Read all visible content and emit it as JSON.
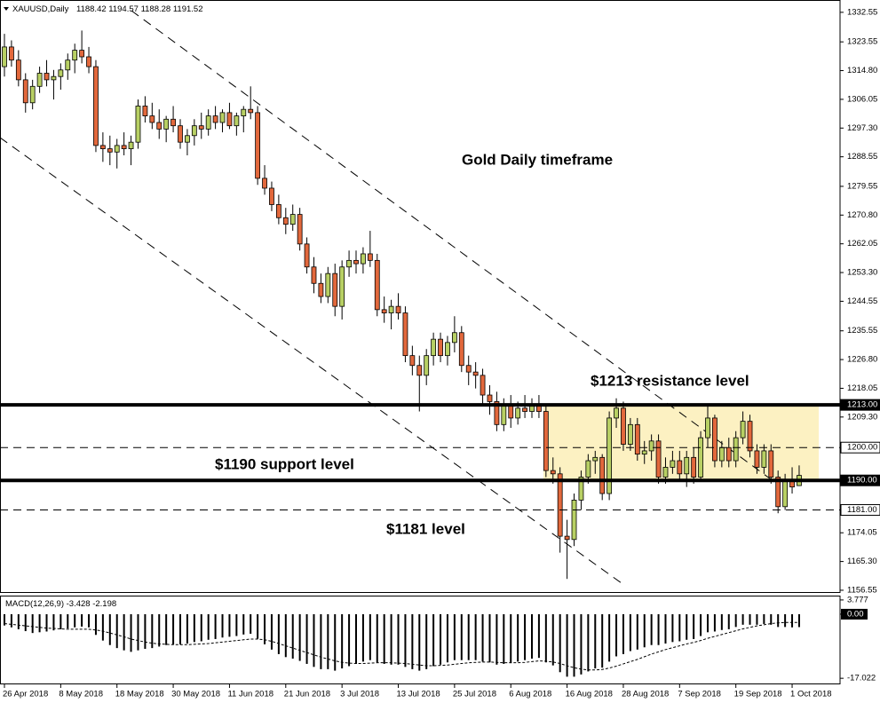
{
  "chart_data": [
    {
      "type": "candlestick",
      "title": "XAUUSD,Daily",
      "annotations": [
        "Gold Daily timeframe",
        "$1213 resistance level",
        "$1190 support level",
        "$1181 level"
      ],
      "categories": [
        "26 Apr 2018",
        null,
        null,
        null,
        null,
        null,
        null,
        null,
        "8 May 2018",
        null,
        null,
        null,
        null,
        null,
        null,
        null,
        "18 May 2018",
        null,
        null,
        null,
        null,
        null,
        null,
        null,
        "30 May 2018",
        null,
        null,
        null,
        null,
        null,
        null,
        null,
        "11 Jun 2018",
        null,
        null,
        null,
        null,
        null,
        null,
        null,
        "21 Jun 2018",
        null,
        null,
        null,
        null,
        null,
        null,
        null,
        "3 Jul 2018",
        null,
        null,
        null,
        null,
        null,
        null,
        null,
        "13 Jul 2018",
        null,
        null,
        null,
        null,
        null,
        null,
        null,
        "25 Jul 2018",
        null,
        null,
        null,
        null,
        null,
        null,
        null,
        "6 Aug 2018",
        null,
        null,
        null,
        null,
        null,
        null,
        null,
        "16 Aug 2018",
        null,
        null,
        null,
        null,
        null,
        null,
        null,
        "28 Aug 2018",
        null,
        null,
        null,
        null,
        null,
        null,
        null,
        "7 Sep 2018",
        null,
        null,
        null,
        null,
        null,
        null,
        null,
        "19 Sep 2018",
        null,
        null,
        null,
        null,
        null,
        null,
        null,
        "1 Oct 2018",
        null
      ],
      "open": [
        1316,
        1322,
        1318,
        1312,
        1305,
        1310,
        1314,
        1312,
        1313,
        1315,
        1318,
        1321,
        1319,
        1316,
        1292,
        1291,
        1290,
        1292,
        1291,
        1293,
        1304,
        1301,
        1299,
        1297,
        1300,
        1298,
        1293,
        1295,
        1298,
        1297,
        1301,
        1299,
        1302,
        1298,
        1301,
        1303,
        1302,
        1282,
        1279,
        1274,
        1270,
        1268,
        1271,
        1262,
        1255,
        1250,
        1246,
        1253,
        1243,
        1255,
        1257,
        1256,
        1259,
        1257,
        1242,
        1241,
        1243,
        1241,
        1228,
        1225,
        1222,
        1228,
        1233,
        1228,
        1232,
        1235,
        1225,
        1223,
        1222,
        1216,
        1214,
        1207,
        1213,
        1209,
        1212,
        1211,
        1213,
        1211,
        1193,
        1192,
        1173,
        1172,
        1184,
        1191,
        1196,
        1197,
        1186,
        1209,
        1212,
        1201,
        1207,
        1198,
        1199,
        1202,
        1191,
        1194,
        1196,
        1192,
        1197,
        1191,
        1203,
        1209,
        1196,
        1200,
        1196,
        1203,
        1208,
        1199,
        1194,
        1199,
        1191,
        1182,
        1190,
        1188.42
      ],
      "high": [
        1326,
        1324,
        1321,
        1314,
        1312,
        1316,
        1318,
        1315,
        1317,
        1320,
        1323,
        1327,
        1322,
        1318,
        1296,
        1295,
        1294,
        1296,
        1295,
        1306,
        1307,
        1305,
        1303,
        1301,
        1304,
        1300,
        1297,
        1300,
        1302,
        1303,
        1304,
        1303,
        1305,
        1302,
        1304,
        1310,
        1304,
        1286,
        1281,
        1277,
        1273,
        1274,
        1273,
        1264,
        1258,
        1253,
        1255,
        1256,
        1257,
        1260,
        1260,
        1261,
        1266,
        1259,
        1246,
        1245,
        1247,
        1243,
        1231,
        1228,
        1230,
        1235,
        1235,
        1234,
        1240,
        1237,
        1228,
        1226,
        1224,
        1219,
        1217,
        1215,
        1216,
        1214,
        1216,
        1215,
        1216,
        1213,
        1197,
        1194,
        1178,
        1186,
        1193,
        1198,
        1199,
        1198,
        1211,
        1215,
        1214,
        1209,
        1209,
        1202,
        1204,
        1204,
        1197,
        1199,
        1199,
        1199,
        1200,
        1205,
        1213,
        1210,
        1202,
        1203,
        1205,
        1211,
        1210,
        1201,
        1201,
        1201,
        1193,
        1192,
        1194,
        1194.57
      ],
      "low": [
        1313,
        1316,
        1310,
        1302,
        1303,
        1308,
        1310,
        1306,
        1309,
        1312,
        1314,
        1317,
        1314,
        1290,
        1287,
        1286,
        1285,
        1289,
        1286,
        1291,
        1299,
        1297,
        1294,
        1293,
        1296,
        1291,
        1289,
        1292,
        1294,
        1295,
        1297,
        1296,
        1297,
        1295,
        1296,
        1300,
        1280,
        1277,
        1272,
        1268,
        1265,
        1266,
        1260,
        1253,
        1247,
        1244,
        1244,
        1240,
        1239,
        1252,
        1253,
        1253,
        1255,
        1240,
        1238,
        1236,
        1239,
        1226,
        1222,
        1211,
        1219,
        1225,
        1226,
        1225,
        1229,
        1223,
        1219,
        1218,
        1213,
        1210,
        1205,
        1205,
        1206,
        1207,
        1209,
        1209,
        1209,
        1191,
        1189,
        1168,
        1160,
        1170,
        1181,
        1189,
        1192,
        1184,
        1184,
        1206,
        1199,
        1199,
        1196,
        1195,
        1196,
        1189,
        1189,
        1192,
        1190,
        1188,
        1189,
        1190,
        1200,
        1194,
        1194,
        1194,
        1194,
        1201,
        1197,
        1192,
        1192,
        1189,
        1180,
        1181,
        1186,
        1188.28
      ],
      "close": [
        1322,
        1318,
        1312,
        1305,
        1310,
        1314,
        1312,
        1313,
        1315,
        1318,
        1321,
        1319,
        1316,
        1292,
        1291,
        1290,
        1292,
        1291,
        1293,
        1304,
        1301,
        1299,
        1297,
        1300,
        1298,
        1293,
        1295,
        1298,
        1297,
        1301,
        1299,
        1302,
        1298,
        1301,
        1303,
        1302,
        1282,
        1279,
        1274,
        1270,
        1268,
        1271,
        1262,
        1255,
        1250,
        1246,
        1253,
        1243,
        1255,
        1257,
        1256,
        1259,
        1257,
        1242,
        1241,
        1243,
        1241,
        1228,
        1225,
        1222,
        1228,
        1233,
        1228,
        1232,
        1235,
        1225,
        1223,
        1222,
        1216,
        1214,
        1207,
        1213,
        1209,
        1212,
        1211,
        1213,
        1211,
        1193,
        1192,
        1173,
        1172,
        1184,
        1191,
        1196,
        1197,
        1186,
        1209,
        1212,
        1201,
        1207,
        1198,
        1199,
        1202,
        1191,
        1194,
        1196,
        1192,
        1197,
        1191,
        1203,
        1209,
        1196,
        1200,
        1196,
        1203,
        1208,
        1199,
        1194,
        1199,
        1191,
        1182,
        1190,
        1188,
        1191.52
      ],
      "up_color": "#b8d064",
      "down_color": "#e2683c",
      "ylim": [
        1156,
        1336.3
      ],
      "yticks": [
        1332.55,
        1323.55,
        {
          "value": 1314.8,
          "label": "1314.80"
        },
        1306.05,
        {
          "value": 1297.3,
          "label": "1297.30"
        },
        1288.55,
        1279.55,
        {
          "value": 1270.8,
          "label": "1270.80"
        },
        1262.05,
        {
          "value": 1253.3,
          "label": "1253.30"
        },
        1244.55,
        1235.55,
        {
          "value": 1226.8,
          "label": "1226.80"
        },
        1218.05,
        {
          "value": 1209.3,
          "label": "1209.30"
        },
        1174.05,
        {
          "value": 1165.3,
          "label": "1165.30"
        },
        1156.55
      ],
      "levels": [
        {
          "value": 1213,
          "label": "1213.00",
          "style": "solid"
        },
        {
          "value": 1200,
          "label": "1200.00",
          "style": "dashed"
        },
        {
          "value": 1190,
          "label": "1190.00",
          "style": "solid"
        },
        {
          "value": 1181,
          "label": "1181.00",
          "style": "dashed"
        }
      ],
      "zone": [
        1190,
        1213
      ],
      "zone_color": "#fcf1c2"
    },
    {
      "type": "macd",
      "title": "MACD(12,26,9)",
      "values": [
        -3,
        -3.5,
        -4,
        -4.5,
        -5,
        -4.8,
        -4.6,
        -4.3,
        -4,
        -3.8,
        -3.5,
        -3.3,
        -3.5,
        -5.5,
        -7,
        -8.2,
        -9,
        -9.6,
        -10,
        -9.6,
        -9.2,
        -9,
        -8.6,
        -8.2,
        -8,
        -8,
        -7.8,
        -7.4,
        -7.2,
        -6.8,
        -6.6,
        -6.2,
        -6,
        -5.8,
        -5.4,
        -5.2,
        -6.5,
        -8,
        -9.4,
        -10.6,
        -11.4,
        -11.8,
        -12.4,
        -13.2,
        -14,
        -14.6,
        -14.6,
        -15,
        -14.4,
        -13.8,
        -13.2,
        -12.6,
        -12.2,
        -12.8,
        -13.2,
        -13.4,
        -13.4,
        -14,
        -14.6,
        -15,
        -14.6,
        -13.8,
        -13.4,
        -12.8,
        -12.2,
        -12.2,
        -12.2,
        -12.2,
        -12.6,
        -12.8,
        -13.4,
        -13.2,
        -13,
        -12.6,
        -12.2,
        -11.8,
        -11.6,
        -12.8,
        -13.6,
        -15.4,
        -16.6,
        -16.6,
        -16,
        -15.2,
        -14.4,
        -14.2,
        -12.6,
        -11.2,
        -10.6,
        -9.8,
        -9.4,
        -8.8,
        -8.2,
        -8.2,
        -7.8,
        -7.4,
        -7.2,
        -6.8,
        -6.6,
        -5.8,
        -4.8,
        -4.6,
        -4.2,
        -4,
        -3.4,
        -2.8,
        -2.8,
        -2.8,
        -2.6,
        -2.8,
        -3.4,
        -3.4,
        -3.5,
        -3.428
      ],
      "signal": [
        -2.5,
        -2.7,
        -2.9,
        -3.1,
        -3.3,
        -3.5,
        -3.7,
        -3.8,
        -3.9,
        -4.0,
        -4.0,
        -4.0,
        -4.0,
        -4.2,
        -4.5,
        -5.0,
        -5.5,
        -6.0,
        -6.6,
        -7.0,
        -7.4,
        -7.7,
        -7.9,
        -8.0,
        -8.1,
        -8.1,
        -8.1,
        -8.0,
        -7.9,
        -7.8,
        -7.6,
        -7.4,
        -7.2,
        -7.0,
        -6.8,
        -6.6,
        -6.6,
        -6.8,
        -7.2,
        -7.8,
        -8.4,
        -9.0,
        -9.6,
        -10.2,
        -10.8,
        -11.4,
        -11.9,
        -12.4,
        -12.8,
        -13.0,
        -13.1,
        -13.1,
        -13.0,
        -12.9,
        -12.9,
        -12.9,
        -13.0,
        -13.1,
        -13.3,
        -13.5,
        -13.7,
        -13.7,
        -13.6,
        -13.5,
        -13.3,
        -13.1,
        -12.9,
        -12.8,
        -12.7,
        -12.7,
        -12.8,
        -12.9,
        -12.9,
        -12.9,
        -12.8,
        -12.6,
        -12.4,
        -12.5,
        -12.7,
        -13.1,
        -13.7,
        -14.2,
        -14.6,
        -14.8,
        -14.8,
        -14.7,
        -14.3,
        -13.8,
        -13.2,
        -12.6,
        -12.0,
        -11.3,
        -10.6,
        -10.0,
        -9.4,
        -8.9,
        -8.4,
        -7.9,
        -7.5,
        -7.0,
        -6.4,
        -5.9,
        -5.4,
        -4.9,
        -4.4,
        -3.9,
        -3.5,
        -3.1,
        -2.8,
        -2.5,
        -2.3,
        -2.2,
        -2.2,
        -2.198
      ],
      "color": "#000000",
      "ylim": [
        -18.4,
        4.7
      ],
      "yticks": [
        3.777,
        {
          "value": 0,
          "label": "0.00"
        },
        -17.022
      ]
    }
  ]
}
